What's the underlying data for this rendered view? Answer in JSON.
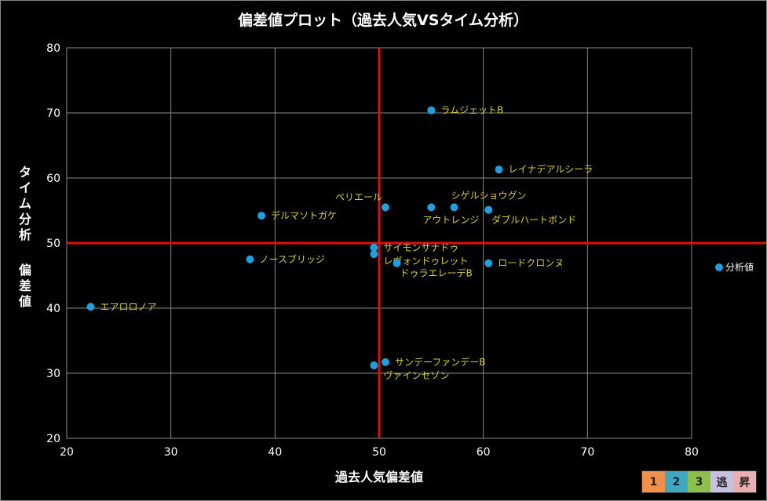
{
  "chart_data": {
    "type": "scatter",
    "title": "偏差値プロット（過去人気VSタイム分析）",
    "xlabel": "過去人気偏差値",
    "ylabel": "タイム分析 偏差値",
    "xlim": [
      20,
      80
    ],
    "ylim": [
      20,
      80
    ],
    "xticks": [
      20,
      30,
      40,
      50,
      60,
      70,
      80
    ],
    "yticks": [
      20,
      30,
      40,
      50,
      60,
      70,
      80
    ],
    "grid": true,
    "reference_lines": {
      "x": 50,
      "y": 50,
      "color": "#e01010"
    },
    "legend": {
      "entries": [
        "分析値"
      ],
      "placement": "right"
    },
    "series": [
      {
        "name": "分析値",
        "color": "#1ea0e0",
        "points": [
          {
            "label": "ラムジェットB",
            "x": 55.0,
            "y": 70.4,
            "pos": "right"
          },
          {
            "label": "レイナデアルシーラ",
            "x": 61.5,
            "y": 61.3,
            "pos": "right"
          },
          {
            "label": "ペリエール",
            "x": 50.6,
            "y": 55.5,
            "pos": "above-left"
          },
          {
            "label": "アウトレンジ",
            "x": 55.0,
            "y": 55.5,
            "pos": "below"
          },
          {
            "label": "シゲルショウグン",
            "x": 57.2,
            "y": 55.5,
            "pos": "above"
          },
          {
            "label": "ダブルハートボンド",
            "x": 60.5,
            "y": 55.1,
            "pos": "below-right"
          },
          {
            "label": "デルマソトガケ",
            "x": 38.7,
            "y": 54.2,
            "pos": "right"
          },
          {
            "label": "サイモンサナドゥ",
            "x": 49.5,
            "y": 49.3,
            "pos": "right"
          },
          {
            "label": "レヴォンドゥレット",
            "x": 49.5,
            "y": 48.3,
            "pos": "right"
          },
          {
            "label": "ノースブリッジ",
            "x": 37.6,
            "y": 47.5,
            "pos": "right"
          },
          {
            "label": "ドゥラエレーデB",
            "x": 51.7,
            "y": 46.9,
            "pos": "below-right"
          },
          {
            "label": "ロードクロンヌ",
            "x": 60.5,
            "y": 46.9,
            "pos": "right"
          },
          {
            "label": "エアロロノア",
            "x": 22.3,
            "y": 40.2,
            "pos": "right"
          },
          {
            "label": "サンデーファンデーB",
            "x": 50.6,
            "y": 31.7,
            "pos": "right"
          },
          {
            "label": "ヴァインセゾン",
            "x": 49.5,
            "y": 31.2,
            "pos": "right"
          }
        ]
      }
    ]
  },
  "badges": [
    {
      "label": "1",
      "color": "#f0904a"
    },
    {
      "label": "2",
      "color": "#3ea8c0"
    },
    {
      "label": "3",
      "color": "#8cc04a"
    },
    {
      "label": "逃",
      "color": "#c8c0e0"
    },
    {
      "label": "昇",
      "color": "#e8b0b0"
    }
  ]
}
